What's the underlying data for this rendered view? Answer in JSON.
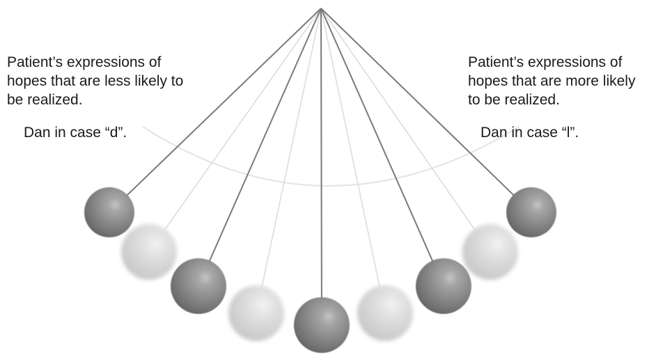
{
  "labels": {
    "left_lines": [
      "Patient’s expressions of",
      "hopes that are less likely to",
      "be realized."
    ],
    "left_case": "Dan in case “d”.",
    "right_lines": [
      "Patient’s expressions of",
      "hopes that are more likely",
      "to be realized."
    ],
    "right_case": "Dan in case “l”."
  },
  "pendulum": {
    "colors": {
      "dark_string": "#7a7a7a",
      "faint_string": "#dcdcdc",
      "dark_ball": "#7b7b7b",
      "faint_ball": "#cfcfcf",
      "arc": "#e3e3e3"
    },
    "balls": [
      {
        "style": "dark"
      },
      {
        "style": "faint"
      },
      {
        "style": "dark"
      },
      {
        "style": "faint"
      },
      {
        "style": "dark"
      },
      {
        "style": "faint"
      },
      {
        "style": "dark"
      },
      {
        "style": "faint"
      },
      {
        "style": "dark"
      }
    ]
  }
}
